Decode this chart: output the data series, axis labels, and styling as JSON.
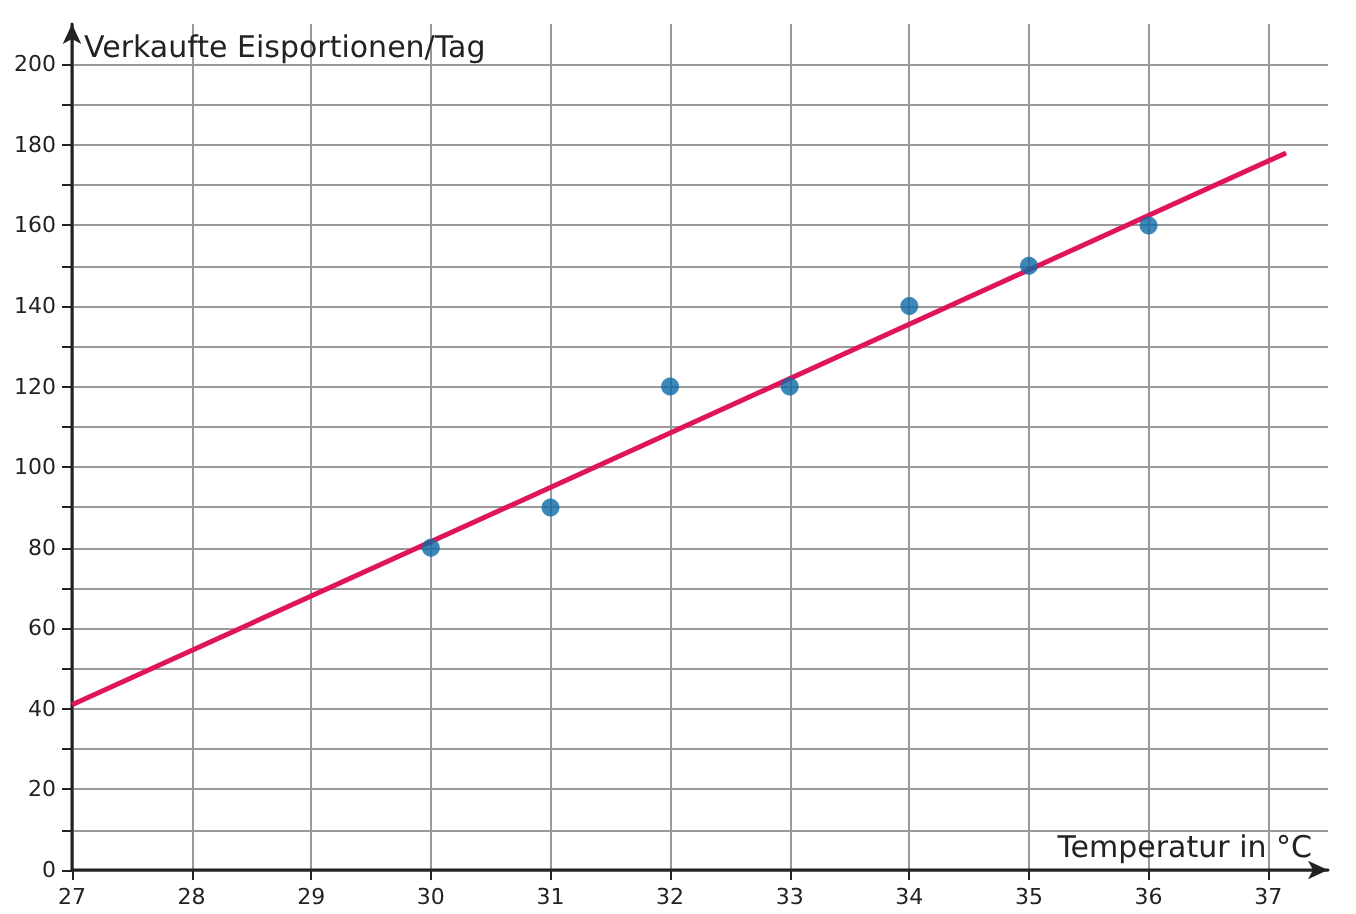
{
  "chart_data": {
    "type": "scatter",
    "xlabel": "Temperatur in °C",
    "ylabel": "Verkaufte Eisportionen/Tag",
    "series": [
      {
        "marker": "circle",
        "color": "#0e6aa8",
        "x": [
          30,
          31,
          32,
          33,
          34,
          35,
          36
        ],
        "values": [
          80,
          90,
          120,
          120,
          140,
          150,
          160
        ]
      },
      {
        "type": "line",
        "color": "#e0145a",
        "x": [
          27,
          37.15
        ],
        "values": [
          41,
          178
        ]
      }
    ],
    "xlim": [
      27,
      37.5
    ],
    "ylim": [
      0,
      210
    ],
    "xticks": [
      27,
      28,
      29,
      30,
      31,
      32,
      33,
      34,
      35,
      36,
      37
    ],
    "yticks": [
      0,
      {
        "value": 10,
        "label": null
      },
      20,
      {
        "value": 30,
        "label": null
      },
      40,
      {
        "value": 50,
        "label": null
      },
      60,
      {
        "value": 70,
        "label": null
      },
      80,
      {
        "value": 90,
        "label": null
      },
      100,
      {
        "value": 110,
        "label": null
      },
      120,
      {
        "value": 130,
        "label": null
      },
      140,
      {
        "value": 150,
        "label": null
      },
      160,
      {
        "value": 170,
        "label": null
      },
      180,
      {
        "value": 190,
        "label": null
      },
      200
    ],
    "grid": true
  }
}
